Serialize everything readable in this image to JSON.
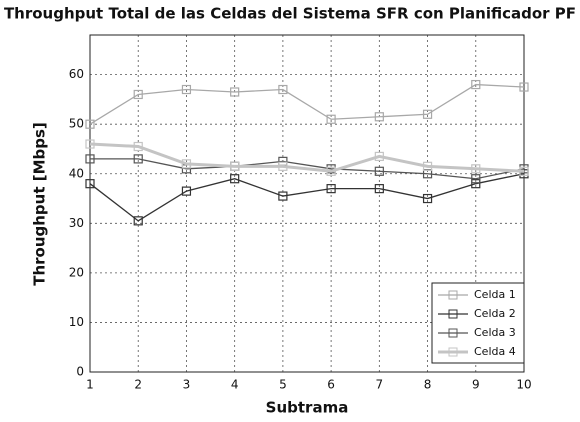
{
  "chart_data": {
    "type": "line",
    "title": "Throughput Total de las Celdas del Sistema SFR con Planificador PF",
    "x_label": "Subtrama",
    "y_label": "Throughput [Mbps]",
    "x": [
      1,
      2,
      3,
      4,
      5,
      6,
      7,
      8,
      9,
      10
    ],
    "xlim": [
      1,
      10
    ],
    "xticks": [
      1,
      2,
      3,
      4,
      5,
      6,
      7,
      8,
      9,
      10
    ],
    "ylim": [
      0,
      68
    ],
    "yticks": [
      0,
      10,
      20,
      30,
      40,
      50,
      60
    ],
    "grid": true,
    "legend": "lower right",
    "series": [
      {
        "name": "Celda 1",
        "color": "#a8a8a8",
        "values": [
          50,
          56,
          57,
          56.5,
          57,
          51,
          51.5,
          52,
          58,
          57.5
        ]
      },
      {
        "name": "Celda 2",
        "color": "#333333",
        "values": [
          38,
          30.5,
          36.5,
          39,
          35.5,
          37,
          37,
          35,
          38,
          40
        ]
      },
      {
        "name": "Celda 3",
        "color": "#555555",
        "values": [
          43,
          43,
          41,
          41.5,
          42.5,
          41,
          40.5,
          40,
          39,
          41
        ]
      },
      {
        "name": "Celda 4",
        "color": "#c4c4c4",
        "values": [
          46,
          45.5,
          42,
          41.5,
          41.5,
          40.5,
          43.5,
          41.5,
          41,
          40.5
        ]
      }
    ]
  }
}
